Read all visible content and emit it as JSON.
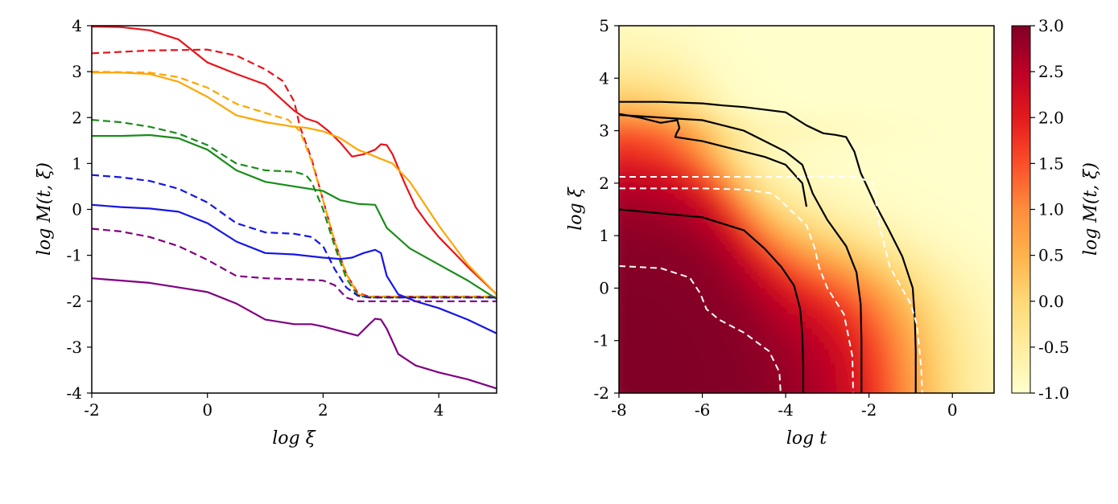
{
  "chart_data": [
    {
      "type": "line",
      "xlabel": "log ξ",
      "ylabel": "log M(t, ξ)",
      "xlim": [
        -2,
        5
      ],
      "ylim": [
        -4,
        4
      ],
      "xticks": [
        "-2",
        "0",
        "2",
        "4"
      ],
      "yticks": [
        "-4",
        "-3",
        "-2",
        "-1",
        "0",
        "1",
        "2",
        "3",
        "4"
      ],
      "grid": false,
      "series": [
        {
          "color": "#e8141b",
          "style": "solid",
          "x": [
            -2,
            -1.5,
            -1,
            -0.5,
            0,
            0.5,
            1,
            1.5,
            1.7,
            1.9,
            2.1,
            2.3,
            2.5,
            2.7,
            2.9,
            3.0,
            3.1,
            3.2,
            3.4,
            3.6,
            3.8,
            4.0,
            4.5,
            5.0
          ],
          "y": [
            3.98,
            3.97,
            3.9,
            3.7,
            3.2,
            2.95,
            2.72,
            2.15,
            1.98,
            1.9,
            1.7,
            1.45,
            1.15,
            1.2,
            1.3,
            1.42,
            1.4,
            1.2,
            0.6,
            0.05,
            -0.3,
            -0.6,
            -1.25,
            -1.85
          ]
        },
        {
          "color": "#e8141b",
          "style": "dashed",
          "x": [
            -2,
            -1,
            0,
            0.5,
            1,
            1.3,
            1.5,
            1.6,
            1.8,
            2.0,
            2.2,
            2.4,
            2.6,
            2.8,
            3,
            3.5,
            4,
            4.5,
            5
          ],
          "y": [
            3.4,
            3.46,
            3.48,
            3.35,
            3.05,
            2.8,
            2.35,
            1.8,
            1.1,
            0.2,
            -0.7,
            -1.4,
            -1.82,
            -1.9,
            -1.9,
            -1.9,
            -1.9,
            -1.9,
            -1.9
          ]
        },
        {
          "color": "#ffa500",
          "style": "solid",
          "x": [
            -2,
            -1.5,
            -1,
            -0.5,
            0,
            0.5,
            1,
            1.5,
            1.7,
            2,
            2.3,
            2.6,
            2.8,
            3,
            3.2,
            3.5,
            4,
            4.5,
            5
          ],
          "y": [
            2.98,
            2.98,
            2.95,
            2.78,
            2.45,
            2.05,
            1.9,
            1.8,
            1.78,
            1.7,
            1.55,
            1.3,
            1.2,
            1.1,
            1.0,
            0.6,
            -0.35,
            -1.2,
            -1.85
          ]
        },
        {
          "color": "#ffa500",
          "style": "dashed",
          "x": [
            -2,
            -1,
            -0.5,
            0,
            0.5,
            1,
            1.4,
            1.6,
            1.8,
            2.0,
            2.2,
            2.4,
            2.6,
            2.8,
            3,
            4,
            5
          ],
          "y": [
            3.0,
            2.98,
            2.88,
            2.65,
            2.3,
            2.1,
            1.95,
            1.7,
            1.05,
            0.2,
            -0.7,
            -1.4,
            -1.85,
            -1.9,
            -1.9,
            -1.9,
            -1.9
          ]
        },
        {
          "color": "#1a8c1a",
          "style": "solid",
          "x": [
            -2,
            -1.5,
            -1,
            -0.5,
            0,
            0.5,
            1,
            1.5,
            2,
            2.3,
            2.6,
            2.9,
            3.1,
            3.5,
            4,
            4.5,
            5
          ],
          "y": [
            1.6,
            1.6,
            1.62,
            1.55,
            1.3,
            0.85,
            0.6,
            0.5,
            0.4,
            0.2,
            0.12,
            0.1,
            -0.4,
            -0.85,
            -1.2,
            -1.55,
            -1.95
          ]
        },
        {
          "color": "#1a8c1a",
          "style": "dashed",
          "x": [
            -2,
            -1.5,
            -1,
            -0.5,
            0,
            0.5,
            1,
            1.5,
            1.7,
            1.8,
            2.0,
            2.2,
            2.4,
            2.6,
            2.8,
            3,
            4,
            5
          ],
          "y": [
            1.95,
            1.9,
            1.8,
            1.65,
            1.4,
            1.0,
            0.85,
            0.82,
            0.75,
            0.6,
            0.0,
            -0.8,
            -1.5,
            -1.88,
            -1.92,
            -1.92,
            -1.92,
            -1.92
          ]
        },
        {
          "color": "#1616e6",
          "style": "solid",
          "x": [
            -2,
            -1.5,
            -1,
            -0.5,
            0,
            0.5,
            1,
            1.5,
            2,
            2.3,
            2.5,
            2.7,
            2.9,
            3.0,
            3.1,
            3.3,
            3.6,
            4,
            4.5,
            5
          ],
          "y": [
            0.1,
            0.05,
            0.02,
            -0.05,
            -0.3,
            -0.7,
            -0.95,
            -0.98,
            -1.05,
            -1.08,
            -1.05,
            -0.95,
            -0.88,
            -0.95,
            -1.45,
            -1.85,
            -2.0,
            -2.15,
            -2.4,
            -2.7
          ]
        },
        {
          "color": "#1616e6",
          "style": "dashed",
          "x": [
            -2,
            -1.5,
            -1,
            -0.5,
            0,
            0.5,
            1,
            1.5,
            1.8,
            2.0,
            2.2,
            2.4,
            2.6,
            2.8,
            3,
            4,
            5
          ],
          "y": [
            0.75,
            0.7,
            0.62,
            0.45,
            0.15,
            -0.3,
            -0.5,
            -0.53,
            -0.6,
            -0.8,
            -1.3,
            -1.7,
            -1.88,
            -1.92,
            -1.92,
            -1.92,
            -1.92
          ]
        },
        {
          "color": "#800080",
          "style": "solid",
          "x": [
            -2,
            -1.5,
            -1,
            -0.5,
            0,
            0.5,
            1,
            1.5,
            1.8,
            2,
            2.3,
            2.6,
            2.8,
            2.9,
            3.0,
            3.1,
            3.3,
            3.6,
            4,
            4.5,
            5
          ],
          "y": [
            -1.5,
            -1.55,
            -1.6,
            -1.7,
            -1.8,
            -2.05,
            -2.4,
            -2.5,
            -2.5,
            -2.55,
            -2.65,
            -2.75,
            -2.5,
            -2.38,
            -2.4,
            -2.6,
            -3.15,
            -3.4,
            -3.55,
            -3.7,
            -3.9
          ]
        },
        {
          "color": "#800080",
          "style": "dashed",
          "x": [
            -2,
            -1.5,
            -1,
            -0.5,
            0,
            0.5,
            1,
            1.5,
            2,
            2.2,
            2.4,
            2.6,
            2.8,
            3,
            4,
            5
          ],
          "y": [
            -0.42,
            -0.48,
            -0.6,
            -0.8,
            -1.1,
            -1.45,
            -1.5,
            -1.52,
            -1.55,
            -1.65,
            -1.92,
            -2.0,
            -2.0,
            -2.0,
            -2.0,
            -2.0
          ]
        }
      ]
    },
    {
      "type": "heatmap",
      "xlabel": "log t",
      "ylabel": "log ξ",
      "colorbar_label": "log M(t, ξ)",
      "xlim": [
        -8,
        1
      ],
      "ylim": [
        -2,
        5
      ],
      "xticks": [
        "-8",
        "-6",
        "-4",
        "-2",
        "0"
      ],
      "yticks": [
        "-2",
        "-1",
        "0",
        "1",
        "2",
        "3",
        "4",
        "5"
      ],
      "colorbar_range": [
        -1.0,
        3.0
      ],
      "colorbar_ticks": [
        "-1.0",
        "-0.5",
        "0.0",
        "0.5",
        "1.0",
        "1.5",
        "2.0",
        "2.5",
        "3.0"
      ],
      "colormap": [
        "#ffffcc",
        "#ffeda0",
        "#fed976",
        "#feb24c",
        "#fd8d3c",
        "#fc4e2a",
        "#e31a1c",
        "#bd0026",
        "#800026"
      ],
      "contours_black": [
        {
          "x": [
            -8,
            -6,
            -5,
            -4.5,
            -4.1,
            -3.8,
            -3.65,
            -3.6,
            -3.58,
            -3.58
          ],
          "y": [
            1.5,
            1.35,
            1.1,
            0.75,
            0.4,
            0.05,
            -0.4,
            -0.9,
            -1.5,
            -2.0
          ]
        },
        {
          "x": [
            -8,
            -6,
            -5,
            -4.5,
            -4,
            -3.6,
            -3.35,
            -3.0,
            -2.55,
            -2.3,
            -2.2,
            -2.18,
            -2.18
          ],
          "y": [
            3.3,
            3.2,
            3.0,
            2.8,
            2.6,
            2.35,
            1.8,
            1.3,
            0.8,
            0.3,
            -0.3,
            -1.0,
            -2.0
          ]
        },
        {
          "x": [
            -8,
            -7,
            -6,
            -5.5,
            -5,
            -4,
            -3.5,
            -3.1,
            -2.8,
            -2.55,
            -2.35,
            -2.2,
            -1.85,
            -1.55,
            -1.2,
            -0.95,
            -0.9,
            -0.88,
            -0.88
          ],
          "y": [
            3.55,
            3.55,
            3.52,
            3.48,
            3.45,
            3.35,
            3.1,
            2.95,
            2.92,
            2.88,
            2.6,
            2.2,
            1.6,
            1.15,
            0.6,
            0.0,
            -0.6,
            -1.2,
            -2.0
          ]
        },
        {
          "x": [
            -8,
            -7.5,
            -7,
            -6.6,
            -6.55,
            -6.62,
            -6.65,
            -6.4,
            -6.0,
            -5.0,
            -4.5,
            -4.0,
            -3.6,
            -3.5
          ],
          "y": [
            3.32,
            3.25,
            3.15,
            3.2,
            3.05,
            2.95,
            2.88,
            2.85,
            2.8,
            2.6,
            2.5,
            2.35,
            2.0,
            1.55
          ]
        }
      ],
      "contours_white": [
        {
          "x": [
            -8,
            -7,
            -6.3,
            -6.05,
            -5.9,
            -5.6,
            -5.0,
            -4.4,
            -4.15,
            -4.12,
            -4.12
          ],
          "y": [
            0.42,
            0.38,
            0.2,
            -0.1,
            -0.4,
            -0.6,
            -0.85,
            -1.2,
            -1.6,
            -2.0,
            -2.0
          ]
        },
        {
          "x": [
            -8,
            -6,
            -5,
            -4.3,
            -3.5,
            -3.3,
            -3.2,
            -3.0,
            -2.6,
            -2.4,
            -2.38
          ],
          "y": [
            1.9,
            1.9,
            1.88,
            1.8,
            1.2,
            0.75,
            0.4,
            0.0,
            -0.5,
            -1.3,
            -2.0
          ]
        },
        {
          "x": [
            -8,
            -6,
            -4,
            -2.3,
            -1.9,
            -1.75,
            -1.5,
            -1.0,
            -0.85,
            -0.75,
            -0.72
          ],
          "y": [
            2.12,
            2.12,
            2.12,
            2.12,
            2.0,
            1.2,
            0.4,
            -0.3,
            -0.7,
            -1.5,
            -2.0
          ]
        }
      ]
    }
  ]
}
